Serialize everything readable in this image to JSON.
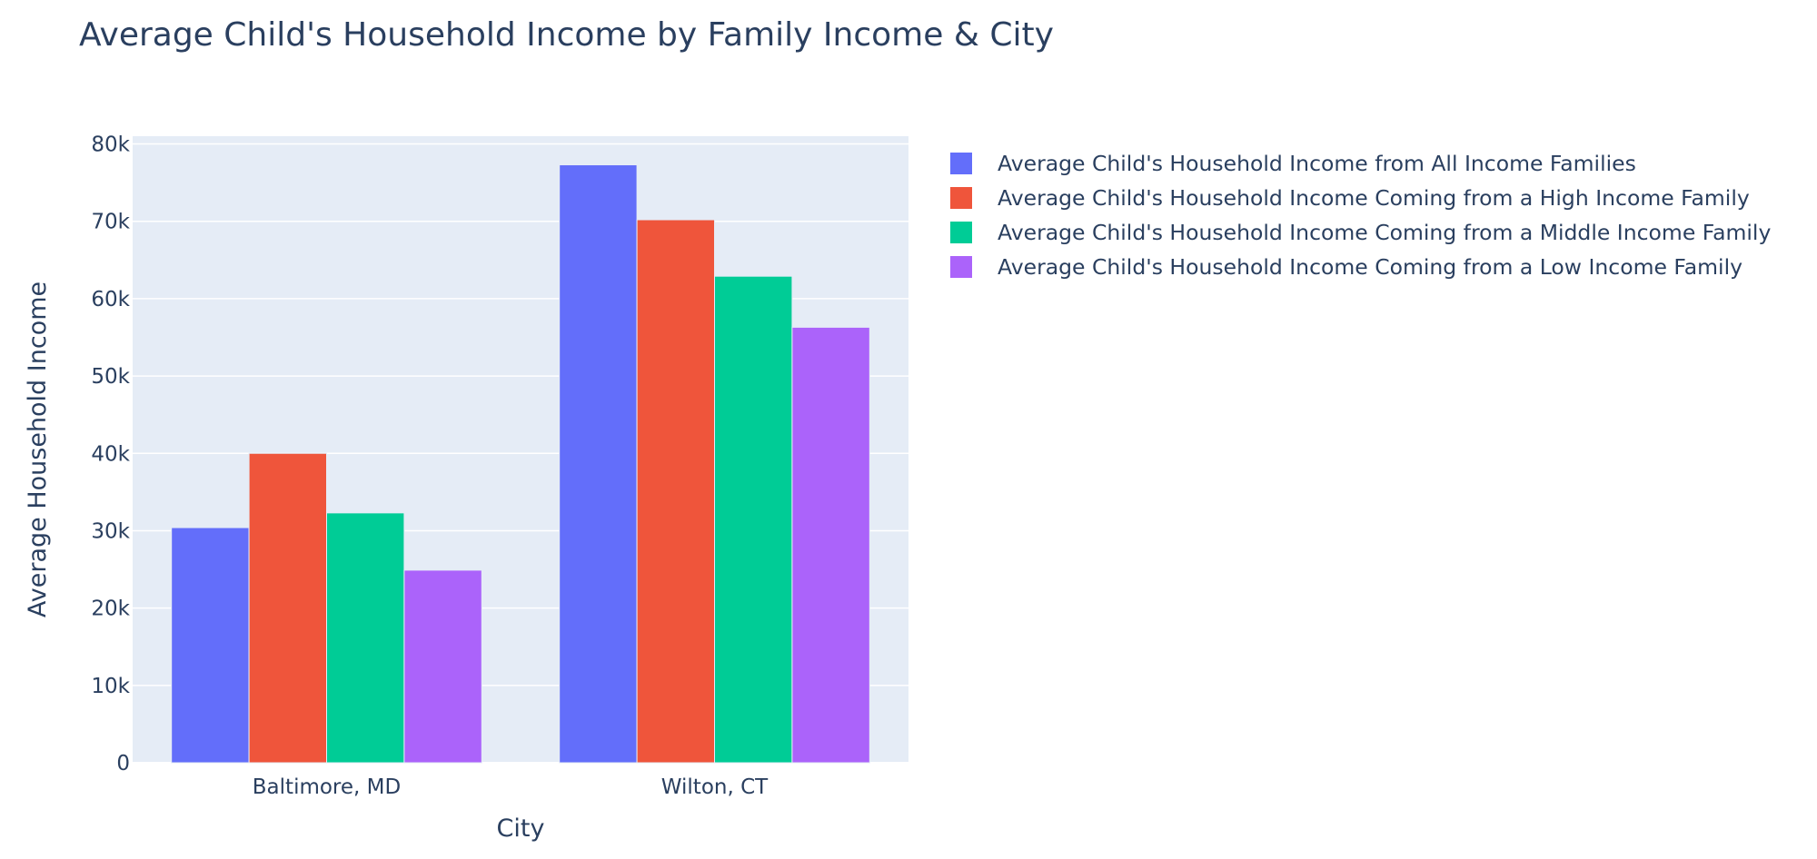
{
  "chart_data": {
    "type": "bar",
    "title": "Average Child's Household Income by Family Income & City",
    "xlabel": "City",
    "ylabel": "Average Household Income",
    "categories": [
      "Baltimore, MD",
      "Wilton, CT"
    ],
    "ylim": [
      0,
      81000
    ],
    "yticks": [
      0,
      10000,
      20000,
      30000,
      40000,
      50000,
      60000,
      70000,
      80000
    ],
    "ytick_labels": [
      "0",
      "10k",
      "20k",
      "30k",
      "40k",
      "50k",
      "60k",
      "70k",
      "80k"
    ],
    "grid": true,
    "legend_position": "top-right, outside plot",
    "series": [
      {
        "name": "Average Child's Household Income from All Income Families",
        "color": "#636efa",
        "values": [
          30400,
          77300
        ]
      },
      {
        "name": "Average Child's Household Income Coming from a High Income Family",
        "color": "#ef553b",
        "values": [
          40000,
          70200
        ]
      },
      {
        "name": "Average Child's Household Income Coming from a Middle Income Family",
        "color": "#00cc96",
        "values": [
          32300,
          62900
        ]
      },
      {
        "name": "Average Child's Household Income Coming from a Low Income Family",
        "color": "#ab63fa",
        "values": [
          24900,
          56300
        ]
      }
    ]
  }
}
